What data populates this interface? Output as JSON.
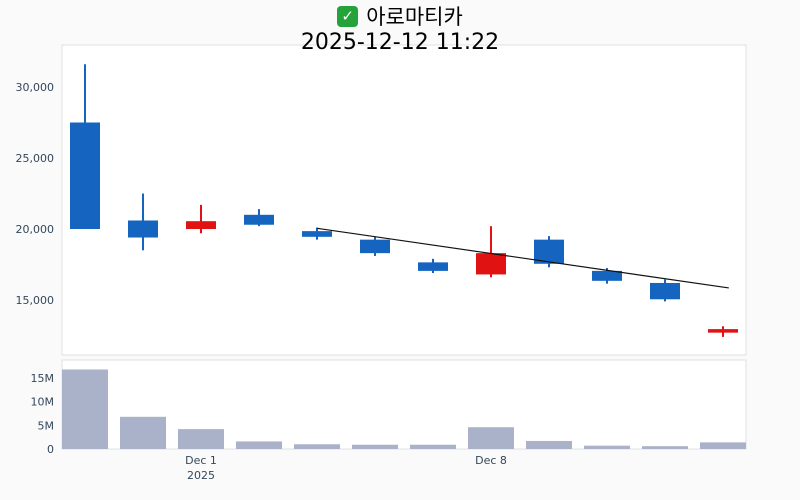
{
  "header": {
    "check_glyph": "✓",
    "title": "아로마티카",
    "timestamp": "2025-12-12 11:22"
  },
  "chart_data": {
    "type": "candlestick",
    "title": "아로마티카 2025-12-12 11:22",
    "up_color": "#e01212",
    "down_color": "#1565c0",
    "volume_color": "#a9b2c8",
    "trend_color": "#111111",
    "panel_border": "#e0e0e0",
    "price_axis": [
      {
        "value": 30000,
        "label": "30,000"
      },
      {
        "value": 25000,
        "label": "25,000"
      },
      {
        "value": 20000,
        "label": "20,000"
      },
      {
        "value": 15000,
        "label": "15,000"
      }
    ],
    "volume_axis": [
      {
        "value": 15,
        "label": "15M"
      },
      {
        "value": 10,
        "label": "10M"
      },
      {
        "value": 5,
        "label": "5M"
      },
      {
        "value": 0,
        "label": "0"
      }
    ],
    "x_ticks": [
      {
        "index": 2,
        "label": "Dec 1",
        "sublabel": "2025"
      },
      {
        "index": 7,
        "label": "Dec 8"
      }
    ],
    "candles": [
      {
        "date": "Nov 27",
        "open": 27500,
        "high": 31600,
        "low": 20000,
        "close": 20000,
        "volume_m": 16.8
      },
      {
        "date": "Nov 28",
        "open": 20600,
        "high": 22500,
        "low": 18500,
        "close": 19400,
        "volume_m": 6.8
      },
      {
        "date": "Dec 1",
        "open": 20000,
        "high": 21700,
        "low": 19700,
        "close": 20550,
        "volume_m": 4.2
      },
      {
        "date": "Dec 2",
        "open": 21000,
        "high": 21400,
        "low": 20200,
        "close": 20300,
        "volume_m": 1.6
      },
      {
        "date": "Dec 3",
        "open": 19850,
        "high": 20100,
        "low": 19250,
        "close": 19450,
        "volume_m": 1.0
      },
      {
        "date": "Dec 4",
        "open": 19250,
        "high": 19450,
        "low": 18100,
        "close": 18300,
        "volume_m": 0.9
      },
      {
        "date": "Dec 5",
        "open": 17650,
        "high": 17900,
        "low": 16900,
        "close": 17050,
        "volume_m": 0.9
      },
      {
        "date": "Dec 8",
        "open": 16800,
        "high": 20200,
        "low": 16600,
        "close": 18300,
        "volume_m": 4.6
      },
      {
        "date": "Dec 9",
        "open": 19250,
        "high": 19500,
        "low": 17300,
        "close": 17550,
        "volume_m": 1.7
      },
      {
        "date": "Dec 10",
        "open": 17050,
        "high": 17250,
        "low": 16150,
        "close": 16350,
        "volume_m": 0.7
      },
      {
        "date": "Dec 11",
        "open": 16200,
        "high": 16450,
        "low": 14900,
        "close": 15050,
        "volume_m": 0.6
      },
      {
        "date": "Dec 12",
        "open": 12700,
        "high": 13150,
        "low": 12400,
        "close": 12950,
        "volume_m": 1.4
      }
    ],
    "trend_line": {
      "from_index": 4.0,
      "from_value": 20050,
      "to_index": 11.1,
      "to_value": 15850
    }
  }
}
